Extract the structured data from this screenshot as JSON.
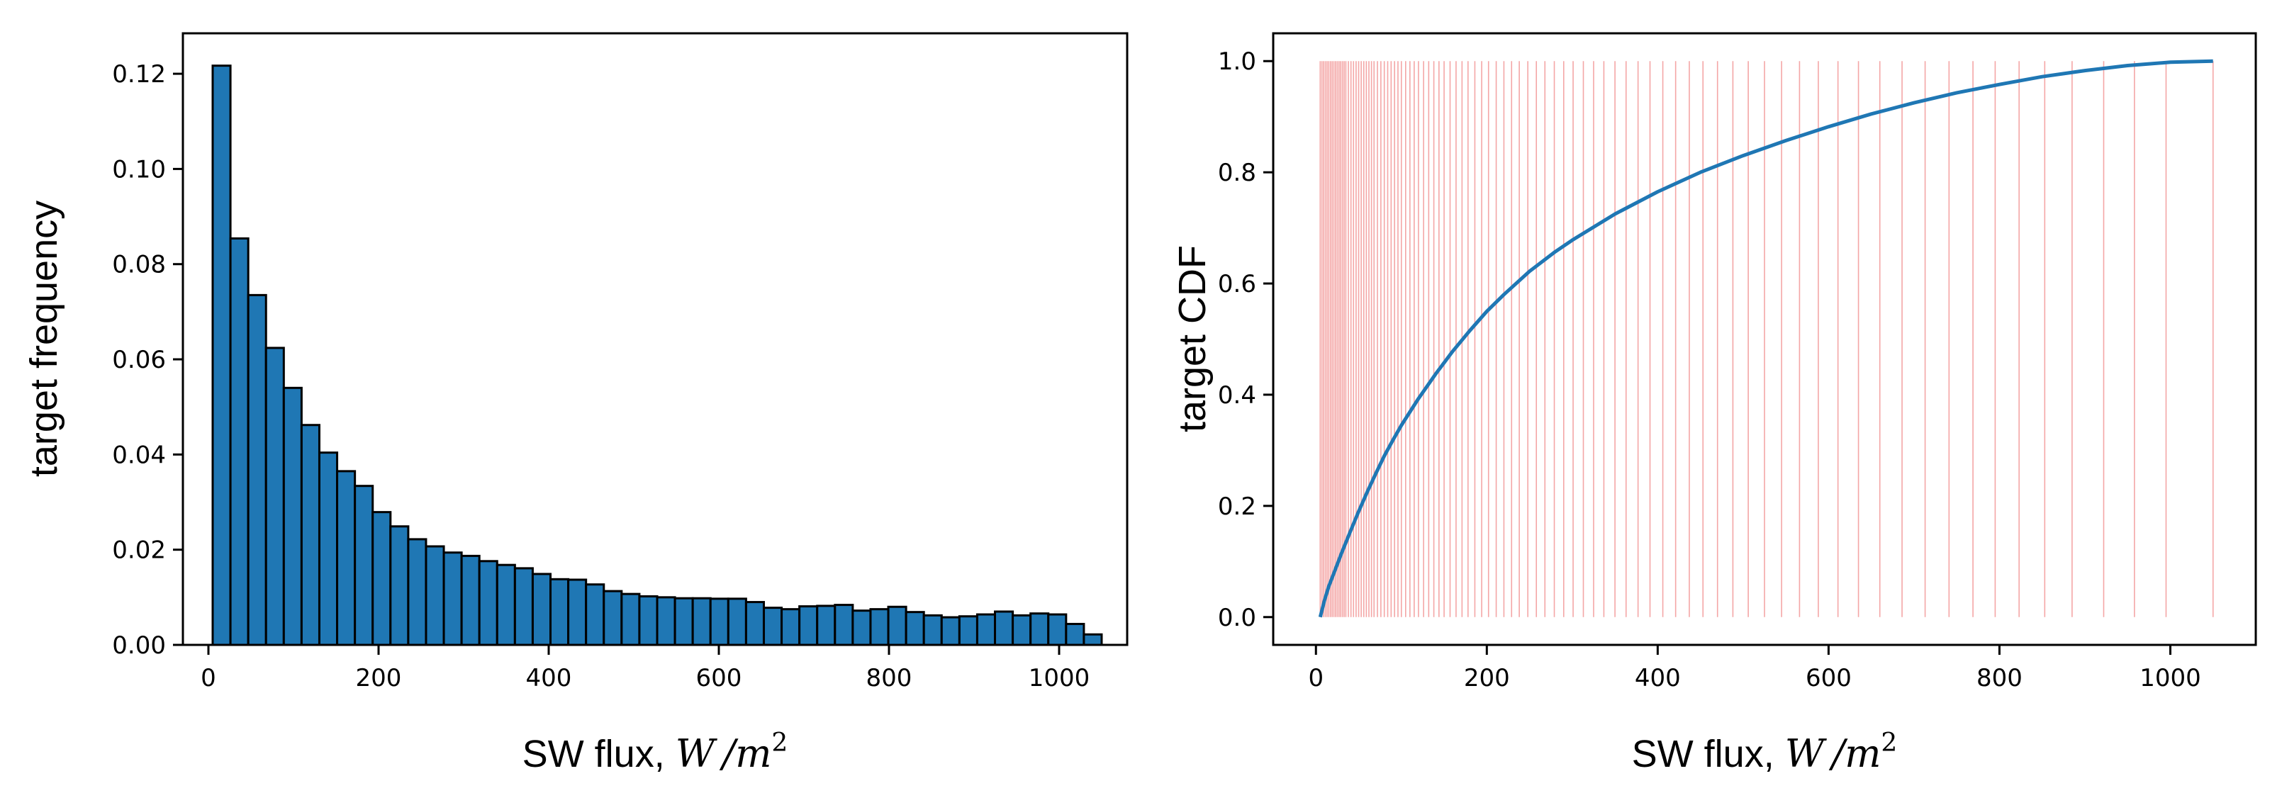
{
  "colors": {
    "bar_fill": "#1f77b4",
    "bar_edge": "#000000",
    "cdf_line": "#1f77b4",
    "quantile_lines": "#f4a6a6"
  },
  "chart_data": [
    {
      "type": "bar",
      "xlabel": "SW flux,",
      "xlabel_math": "W /m",
      "xlabel_sup": "2",
      "ylabel": "target frequency",
      "xlim": [
        -30,
        1080
      ],
      "ylim": [
        0,
        0.1285
      ],
      "xticks": [
        0,
        200,
        400,
        600,
        800,
        1000
      ],
      "xtick_labels": [
        "0",
        "200",
        "400",
        "600",
        "800",
        "1000"
      ],
      "yticks": [
        0,
        0.02,
        0.04,
        0.06,
        0.08,
        0.1,
        0.12
      ],
      "ytick_labels": [
        "0.00",
        "0.02",
        "0.04",
        "0.06",
        "0.08",
        "0.10",
        "0.12"
      ],
      "grid": false,
      "bin_start": 5,
      "bin_width": 20.9,
      "values": [
        0.1217,
        0.0854,
        0.0735,
        0.0624,
        0.054,
        0.0462,
        0.0404,
        0.0365,
        0.0334,
        0.0279,
        0.0249,
        0.0222,
        0.0207,
        0.0194,
        0.0187,
        0.0176,
        0.0168,
        0.0161,
        0.0149,
        0.0138,
        0.0137,
        0.0127,
        0.0113,
        0.0107,
        0.0102,
        0.01,
        0.0098,
        0.0098,
        0.0097,
        0.0097,
        0.009,
        0.0078,
        0.0075,
        0.0081,
        0.0082,
        0.0084,
        0.0072,
        0.0075,
        0.008,
        0.0069,
        0.0062,
        0.0058,
        0.006,
        0.0064,
        0.007,
        0.0062,
        0.0066,
        0.0064,
        0.0044,
        0.0022
      ]
    },
    {
      "type": "line",
      "xlabel": "SW flux,",
      "xlabel_math": "W /m",
      "xlabel_sup": "2",
      "ylabel": "target CDF",
      "xlim": [
        -50,
        1100
      ],
      "ylim": [
        -0.05,
        1.05
      ],
      "xticks": [
        0,
        200,
        400,
        600,
        800,
        1000
      ],
      "xtick_labels": [
        "0",
        "200",
        "400",
        "600",
        "800",
        "1000"
      ],
      "yticks": [
        0,
        0.2,
        0.4,
        0.6,
        0.8,
        1.0
      ],
      "ytick_labels": [
        "0.0",
        "0.2",
        "0.4",
        "0.6",
        "0.8",
        "1.0"
      ],
      "grid": false,
      "series": [
        {
          "x": [
            5,
            10,
            15,
            20,
            30,
            40,
            50,
            60,
            70,
            80,
            90,
            100,
            120,
            140,
            160,
            180,
            200,
            220,
            250,
            280,
            300,
            350,
            400,
            450,
            500,
            550,
            600,
            650,
            700,
            750,
            800,
            850,
            900,
            950,
            1000,
            1050
          ],
          "y": [
            0.0,
            0.03,
            0.055,
            0.075,
            0.115,
            0.153,
            0.19,
            0.225,
            0.258,
            0.29,
            0.318,
            0.345,
            0.393,
            0.437,
            0.478,
            0.515,
            0.55,
            0.58,
            0.622,
            0.657,
            0.678,
            0.725,
            0.765,
            0.8,
            0.83,
            0.857,
            0.882,
            0.905,
            0.925,
            0.943,
            0.958,
            0.972,
            0.983,
            0.992,
            0.998,
            1.0
          ]
        }
      ],
      "quantile_lines": {
        "ymin": 0,
        "ymax": 1,
        "x": [
          5,
          7,
          9,
          11,
          13,
          15,
          17,
          19,
          21,
          23,
          25,
          27,
          29,
          31,
          33,
          35,
          38,
          41,
          44,
          47,
          50,
          53,
          56,
          59,
          62,
          65,
          68,
          72,
          76,
          80,
          84,
          88,
          92,
          96,
          100,
          105,
          110,
          115,
          120,
          126,
          132,
          138,
          144,
          150,
          157,
          164,
          171,
          178,
          186,
          194,
          202,
          211,
          220,
          229,
          238,
          248,
          258,
          268,
          279,
          290,
          301,
          313,
          325,
          337,
          350,
          363,
          377,
          391,
          406,
          421,
          437,
          453,
          470,
          488,
          506,
          525,
          545,
          566,
          588,
          611,
          635,
          660,
          686,
          713,
          741,
          769,
          795,
          823,
          853,
          885,
          922,
          958,
          995,
          1050
        ]
      }
    }
  ]
}
